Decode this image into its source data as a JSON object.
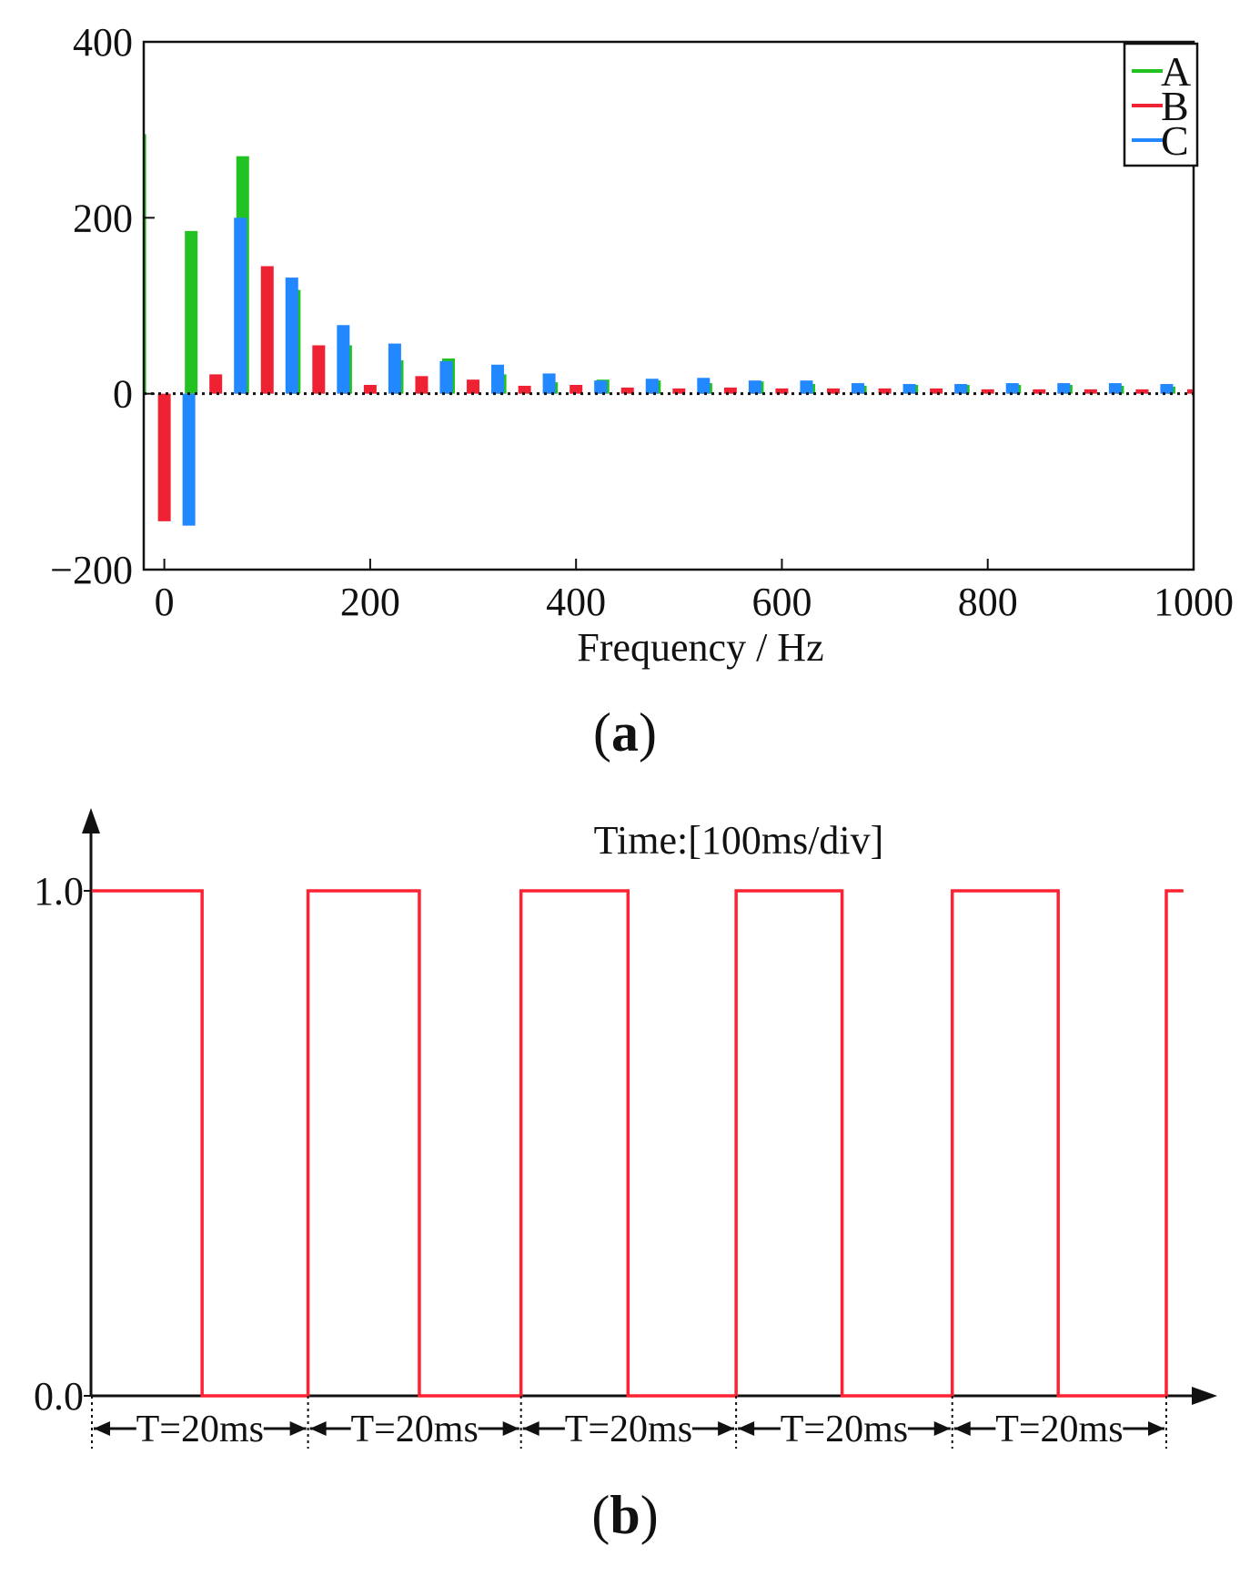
{
  "colors": {
    "A": "#22c222",
    "B": "#ee2233",
    "C": "#2288ff",
    "pulse": "#ff2233"
  },
  "chart_data": [
    {
      "type": "bar",
      "panel": "(a)",
      "panel_letter": "a",
      "xlabel": "Frequency / Hz",
      "ylabel": "",
      "xlim": [
        -20,
        1000
      ],
      "ylim": [
        -200,
        400
      ],
      "xticks": [
        0,
        200,
        400,
        600,
        800,
        1000
      ],
      "yticks": [
        -200,
        0,
        200,
        400
      ],
      "legend": {
        "placement": "top-right",
        "entries": [
          "A",
          "B",
          "C"
        ]
      },
      "x": [
        0,
        50,
        100,
        150,
        200,
        250,
        300,
        350,
        400,
        450,
        500,
        550,
        600,
        650,
        700,
        750,
        800,
        850,
        900,
        950,
        1000
      ],
      "series": [
        {
          "name": "A",
          "values": [
            295,
            185,
            270,
            118,
            55,
            38,
            40,
            22,
            13,
            16,
            15,
            12,
            14,
            11,
            9,
            10,
            10,
            10,
            10,
            9,
            8
          ]
        },
        {
          "name": "B",
          "values": [
            -145,
            22,
            145,
            55,
            10,
            20,
            16,
            9,
            10,
            7,
            6,
            7,
            6,
            6,
            6,
            6,
            5,
            5,
            5,
            5,
            5
          ]
        },
        {
          "name": "C",
          "values": [
            -150,
            200,
            132,
            78,
            57,
            37,
            33,
            23,
            15,
            17,
            18,
            15,
            15,
            12,
            11,
            11,
            12,
            12,
            12,
            11,
            10
          ]
        }
      ]
    },
    {
      "type": "line",
      "panel": "(b)",
      "panel_letter": "b",
      "annotation": "Time:[100ms/div]",
      "ylabel": "",
      "yticks": [
        "0.0",
        "1.0"
      ],
      "ylim": [
        0,
        1
      ],
      "period_label": "T=20ms",
      "period_count": 5,
      "segments": [
        {
          "t": 0,
          "v": 1
        },
        {
          "t": 10.3,
          "v": 1
        },
        {
          "t": 10.3,
          "v": 0
        },
        {
          "t": 20.2,
          "v": 0
        },
        {
          "t": 20.2,
          "v": 1
        },
        {
          "t": 30.6,
          "v": 1
        },
        {
          "t": 30.6,
          "v": 0
        },
        {
          "t": 40.1,
          "v": 0
        },
        {
          "t": 40.1,
          "v": 1
        },
        {
          "t": 50.1,
          "v": 1
        },
        {
          "t": 50.1,
          "v": 0
        },
        {
          "t": 60.2,
          "v": 0
        },
        {
          "t": 60.2,
          "v": 1
        },
        {
          "t": 70.1,
          "v": 1
        },
        {
          "t": 70.1,
          "v": 0
        },
        {
          "t": 80.4,
          "v": 0
        },
        {
          "t": 80.4,
          "v": 1
        },
        {
          "t": 90.3,
          "v": 1
        },
        {
          "t": 90.3,
          "v": 0
        },
        {
          "t": 100.4,
          "v": 0
        },
        {
          "t": 100.4,
          "v": 1
        },
        {
          "t": 102.0,
          "v": 1
        }
      ],
      "period_marks": [
        0,
        20.2,
        40.1,
        60.2,
        80.4,
        100.4
      ]
    }
  ]
}
